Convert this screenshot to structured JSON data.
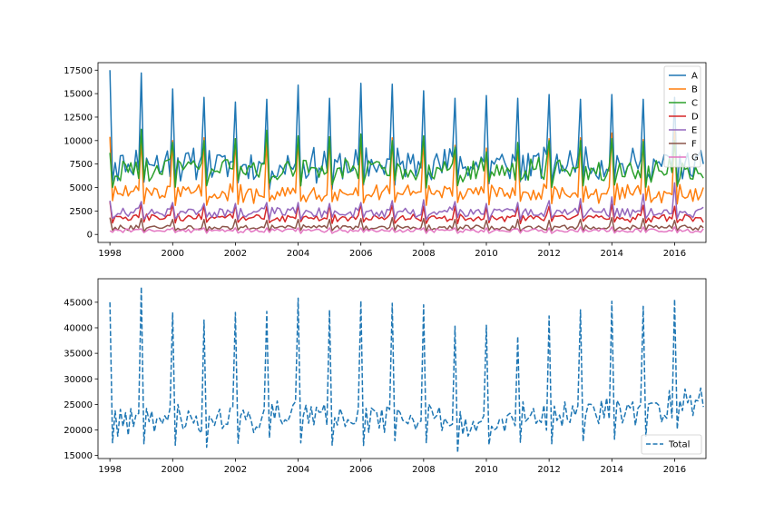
{
  "chart_data": [
    {
      "type": "line",
      "x_start": "1998-01",
      "x_end": "2016-12",
      "frequency": "monthly",
      "xticks": [
        "1998",
        "2000",
        "2002",
        "2004",
        "2006",
        "2008",
        "2010",
        "2012",
        "2014",
        "2016"
      ],
      "xlim": [
        1997.62,
        2017.0
      ],
      "ylim": [
        -850,
        18300
      ],
      "yticks": [
        0,
        2500,
        5000,
        7500,
        10000,
        12500,
        15000,
        17500
      ],
      "yticklabels": [
        "0",
        "2500",
        "5000",
        "7500",
        "10000",
        "12500",
        "15000",
        "17500"
      ],
      "legend": "upper right",
      "series": [
        {
          "name": "A",
          "color": "#1f77b4",
          "base": 7200,
          "peak": 16000,
          "noise": 1500,
          "peak_values": [
            17500,
            17200,
            15500,
            14600,
            14100,
            14400,
            15900,
            14500,
            16100,
            16000,
            15300,
            14500,
            14800,
            14500,
            14900,
            14400,
            14900,
            14400,
            14600
          ],
          "end": 7500
        },
        {
          "name": "B",
          "color": "#ff7f0e",
          "base": 4200,
          "peak": 10300,
          "noise": 700,
          "peak_values": [
            10400,
            10200,
            10000,
            10300,
            10200,
            10100,
            10300,
            10400,
            10400,
            10300,
            10200,
            9500,
            9200,
            9600,
            10200,
            10300,
            10800,
            10100,
            11100
          ],
          "end": 5000
        },
        {
          "name": "C",
          "color": "#2ca02c",
          "base": 6800,
          "peak": 11000,
          "noise": 1200,
          "peak_values": [
            8700,
            11200,
            9800,
            10000,
            10200,
            11100,
            10500,
            10400,
            10700,
            10000,
            10500,
            9300,
            8800,
            9800,
            10000,
            10000,
            10200,
            9900,
            10000
          ],
          "end": 6000
        },
        {
          "name": "D",
          "color": "#d62728",
          "base": 1700,
          "peak": 3400,
          "noise": 350,
          "peak_values": [
            3500,
            3300,
            3200,
            3100,
            3200,
            3000,
            3100,
            3200,
            3200,
            3100,
            3000,
            3000,
            2900,
            3000,
            3000,
            3200,
            3200,
            3100,
            3000
          ],
          "end": 1300
        },
        {
          "name": "E",
          "color": "#9467bd",
          "base": 2300,
          "peak": 3700,
          "noise": 500,
          "peak_values": [
            3600,
            3500,
            3400,
            3300,
            3300,
            3400,
            3400,
            3300,
            3400,
            3600,
            3700,
            3500,
            3300,
            3400,
            3600,
            3800,
            4000,
            4300,
            5500
          ],
          "end": 2900
        },
        {
          "name": "F",
          "color": "#8c564b",
          "base": 700,
          "peak": 2000,
          "noise": 250,
          "peak_values": [
            1800,
            1700,
            1600,
            1600,
            1600,
            1500,
            1600,
            1600,
            1700,
            1800,
            1700,
            1600,
            1500,
            1600,
            1500,
            1600,
            1800,
            1700,
            1500
          ],
          "end": 700
        },
        {
          "name": "G",
          "color": "#e377c2",
          "base": 400,
          "peak": 800,
          "noise": 200,
          "peak_values": [
            400,
            600,
            700,
            700,
            700,
            700,
            700,
            700,
            700,
            700,
            700,
            700,
            700,
            600,
            700,
            800,
            800,
            800,
            800
          ],
          "end": 600
        }
      ]
    },
    {
      "type": "line",
      "x_start": "1998-01",
      "x_end": "2016-12",
      "frequency": "monthly",
      "xticks": [
        "1998",
        "2000",
        "2002",
        "2004",
        "2006",
        "2008",
        "2010",
        "2012",
        "2014",
        "2016"
      ],
      "xlim": [
        1997.62,
        2017.0
      ],
      "ylim": [
        14400,
        49600
      ],
      "yticks": [
        15000,
        20000,
        25000,
        30000,
        35000,
        40000,
        45000
      ],
      "yticklabels": [
        "15000",
        "20000",
        "25000",
        "30000",
        "35000",
        "40000",
        "45000"
      ],
      "legend": "lower right",
      "line_style": "dashed",
      "series": [
        {
          "name": "Total",
          "color": "#1f77b4",
          "peak_values": [
            45000,
            48000,
            43000,
            41500,
            43000,
            43200,
            45800,
            43500,
            45300,
            44800,
            44500,
            40300,
            40500,
            38300,
            42300,
            43500,
            45200,
            44200,
            45600
          ],
          "base_values": [
            21500,
            22000,
            21500,
            21800,
            22200,
            22800,
            22600,
            22000,
            22000,
            22300,
            22300,
            21000,
            21500,
            22000,
            22300,
            22800,
            23300,
            24200,
            25500
          ],
          "end": 24500
        }
      ]
    }
  ]
}
